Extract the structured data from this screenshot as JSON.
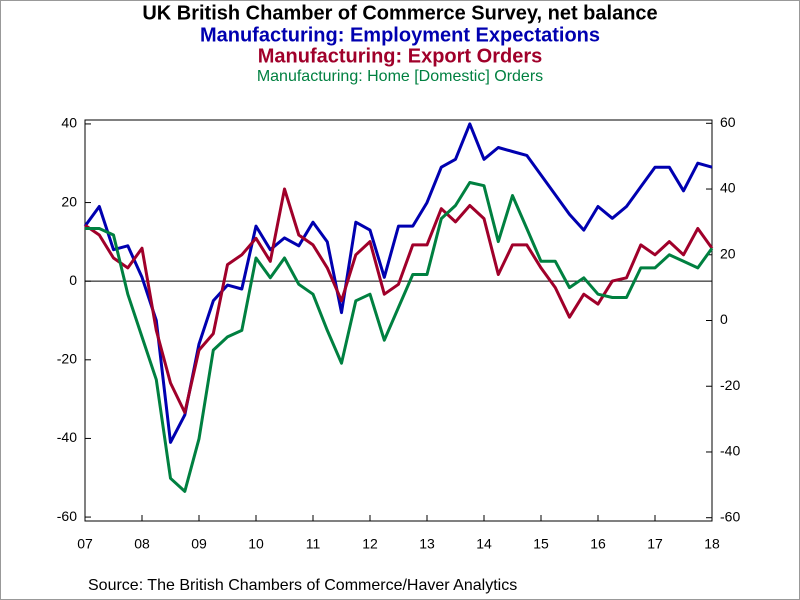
{
  "chart_data": {
    "type": "line",
    "title": "UK British Chamber of Commerce Survey, net balance",
    "source": "Source:  The British Chambers of Commerce/Haver Analytics",
    "x": [
      2007,
      2007.25,
      2007.5,
      2007.75,
      2008,
      2008.25,
      2008.5,
      2008.75,
      2009,
      2009.25,
      2009.5,
      2009.75,
      2010,
      2010.25,
      2010.5,
      2010.75,
      2011,
      2011.25,
      2011.5,
      2011.75,
      2012,
      2012.25,
      2012.5,
      2012.75,
      2013,
      2013.25,
      2013.5,
      2013.75,
      2014,
      2014.25,
      2014.5,
      2014.75,
      2015,
      2015.25,
      2015.5,
      2015.75,
      2016,
      2016.25,
      2016.5,
      2016.75,
      2017,
      2017.25,
      2017.5,
      2017.75,
      2018
    ],
    "xlim": [
      2007,
      2018
    ],
    "xticks": [
      {
        "value": 2007,
        "label": "07"
      },
      {
        "value": 2008,
        "label": "08"
      },
      {
        "value": 2009,
        "label": "09"
      },
      {
        "value": 2010,
        "label": "10"
      },
      {
        "value": 2011,
        "label": "11"
      },
      {
        "value": 2012,
        "label": "12"
      },
      {
        "value": 2013,
        "label": "13"
      },
      {
        "value": 2014,
        "label": "14"
      },
      {
        "value": 2015,
        "label": "15"
      },
      {
        "value": 2016,
        "label": "16"
      },
      {
        "value": 2017,
        "label": "17"
      },
      {
        "value": 2018,
        "label": "18"
      }
    ],
    "ylim": [
      -61,
      41
    ],
    "yticks": [
      -60,
      -40,
      -20,
      0,
      20,
      40
    ],
    "y2lim": [
      -61,
      61
    ],
    "y2ticks": [
      -60,
      -40,
      -20,
      0,
      20,
      40,
      60
    ],
    "zero_line": true,
    "series": [
      {
        "name": "Manufacturing: Employment Expectations",
        "color": "#0000b0",
        "values": [
          14,
          19,
          8,
          9,
          1,
          -10,
          -41,
          -34,
          -16,
          -5,
          -1,
          -2,
          14,
          8,
          11,
          9,
          15,
          10,
          -8,
          15,
          13,
          1,
          14,
          14,
          20,
          29,
          31,
          40,
          31,
          34,
          33,
          32,
          27,
          22,
          17,
          13,
          19,
          16,
          19,
          24,
          29,
          29,
          23,
          30,
          29
        ]
      },
      {
        "name": "Manufacturing: Export Orders",
        "color": "#a0002a",
        "axis": "y2",
        "values": [
          29,
          26,
          19,
          16,
          22,
          -3,
          -19,
          -28,
          -9,
          -4,
          17,
          20,
          25,
          18,
          40,
          26,
          23,
          16,
          6,
          20,
          24,
          8,
          11,
          23,
          23,
          34,
          30,
          35,
          31,
          14,
          23,
          23,
          16,
          10,
          1,
          8,
          5,
          12,
          13,
          23,
          20,
          24,
          20,
          28,
          22
        ]
      },
      {
        "name": "Manufacturing: Home [Domestic] Orders",
        "color": "#008040",
        "axis": "y2",
        "values": [
          28,
          28,
          26,
          8,
          -5,
          -18,
          -48,
          -52,
          -36,
          -9,
          -5,
          -3,
          19,
          13,
          19,
          11,
          8,
          -3,
          -13,
          6,
          8,
          -6,
          4,
          14,
          14,
          31,
          35,
          42,
          41,
          24,
          38,
          28,
          18,
          18,
          10,
          13,
          8,
          7,
          7,
          16,
          16,
          20,
          18,
          16,
          22
        ]
      }
    ]
  }
}
